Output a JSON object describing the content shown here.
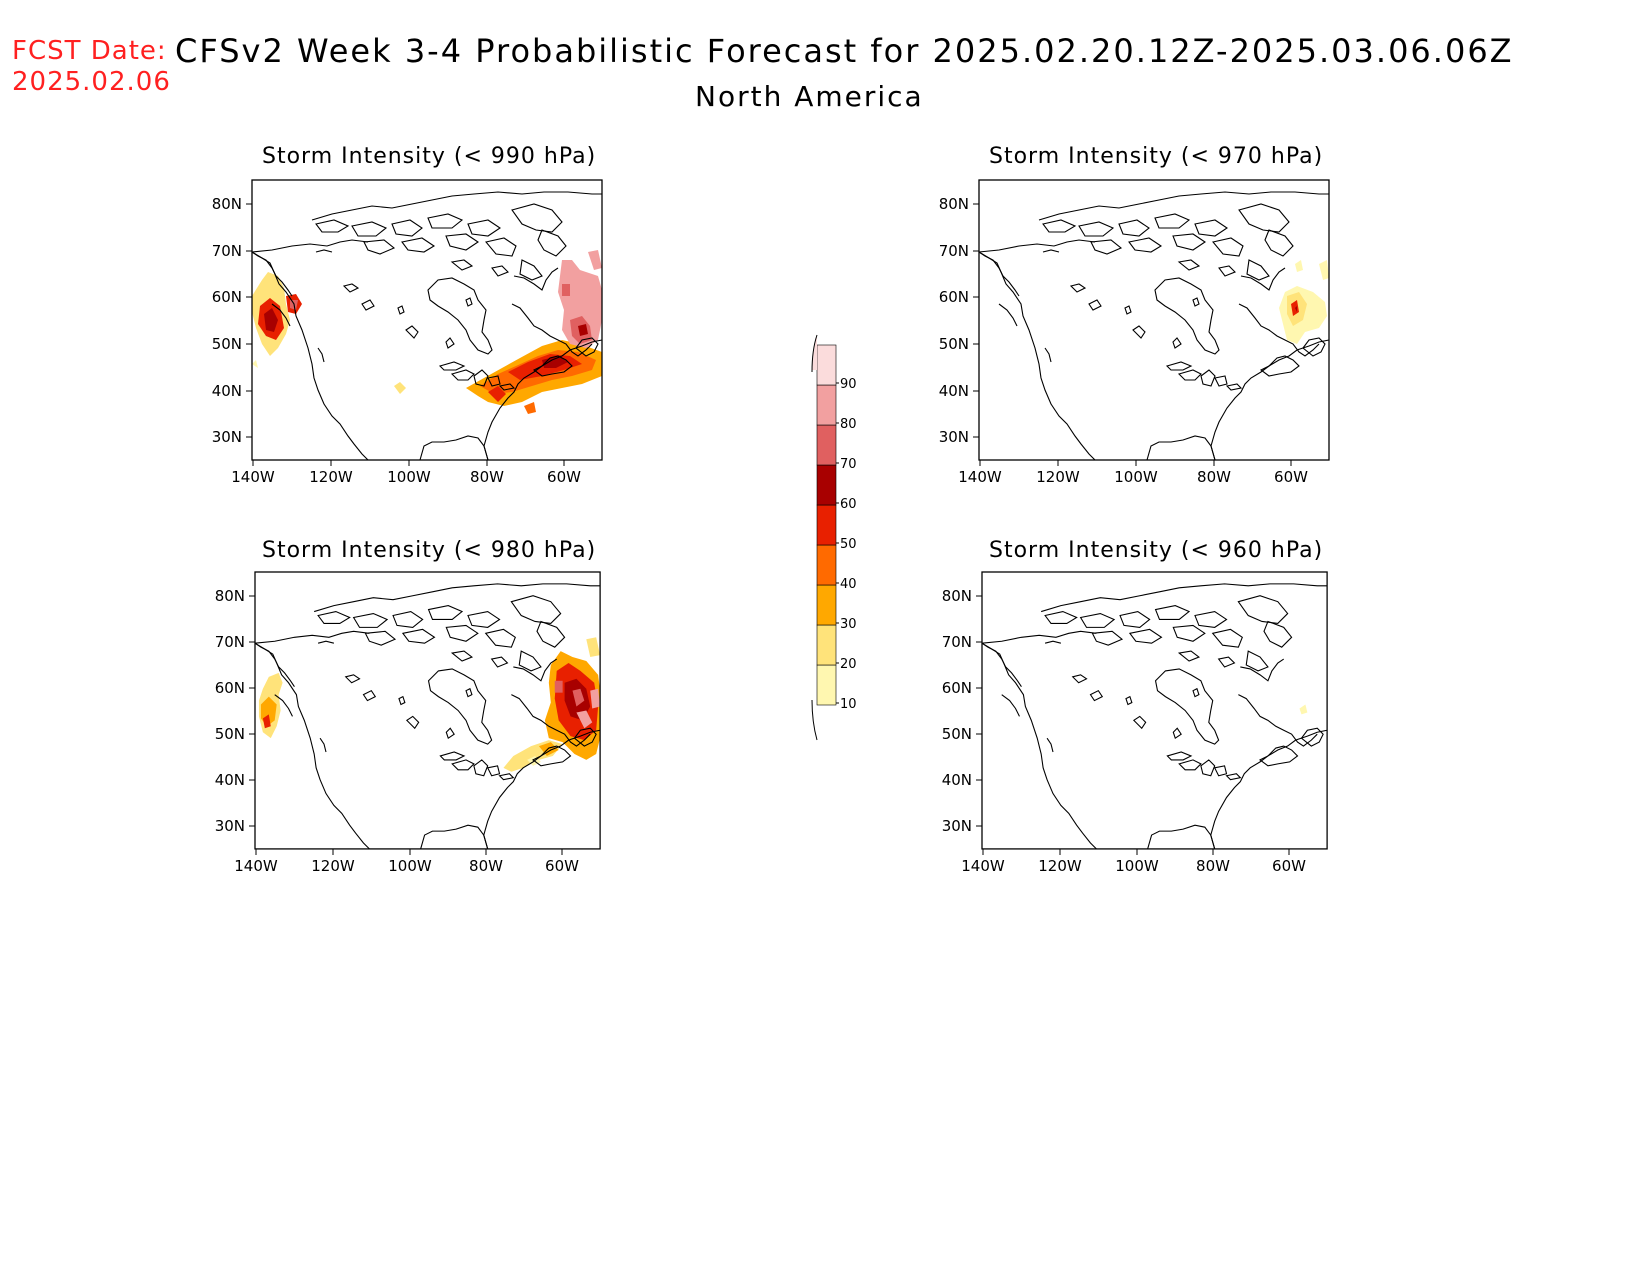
{
  "header": {
    "fcst_label": "FCST Date:",
    "fcst_date": "2025.02.06",
    "title": "CFSv2 Week 3-4 Probabilistic Forecast for 2025.02.20.12Z-2025.03.06.06Z",
    "region": "North America"
  },
  "axes": {
    "lat_labels": [
      "80N",
      "70N",
      "60N",
      "50N",
      "40N",
      "30N"
    ],
    "lon_labels": [
      "140W",
      "120W",
      "100W",
      "80W",
      "60W"
    ]
  },
  "panels": [
    {
      "title": "Storm Intensity (< 990 hPa)"
    },
    {
      "title": "Storm Intensity (< 970 hPa)"
    },
    {
      "title": "Storm Intensity (< 980 hPa)"
    },
    {
      "title": "Storm Intensity (< 960 hPa)"
    }
  ],
  "colorbar": {
    "labels": [
      "10",
      "20",
      "30",
      "40",
      "50",
      "60",
      "70",
      "80",
      "90"
    ],
    "colors": [
      "#fff7b0",
      "#ffe37a",
      "#ffa800",
      "#ff6a00",
      "#e82000",
      "#a80000",
      "#e06060",
      "#f2a0a0",
      "#fbdcdc"
    ]
  },
  "chart_data": [
    {
      "type": "heatmap",
      "title": "Storm Intensity (< 990 hPa)",
      "units": "%",
      "regions": [
        {
          "area": "Gulf of Alaska / Pacific NW coast",
          "max_prob": 70
        },
        {
          "area": "Labrador Sea / Greenland coast",
          "max_prob": 90
        },
        {
          "area": "Great Lakes to Newfoundland / NW Atlantic",
          "max_prob": 70
        },
        {
          "area": "Central US (isolated)",
          "max_prob": 20
        }
      ]
    },
    {
      "type": "heatmap",
      "title": "Storm Intensity (< 970 hPa)",
      "units": "%",
      "regions": [
        {
          "area": "Labrador / Hudson Strait",
          "max_prob": 70
        },
        {
          "area": "Labrador Sea",
          "max_prob": 20
        }
      ]
    },
    {
      "type": "heatmap",
      "title": "Storm Intensity (< 980 hPa)",
      "units": "%",
      "regions": [
        {
          "area": "Gulf of Alaska coast",
          "max_prob": 60
        },
        {
          "area": "Labrador / Labrador Sea",
          "max_prob": 80
        },
        {
          "area": "Nova Scotia / NW Atlantic",
          "max_prob": 30
        }
      ]
    },
    {
      "type": "heatmap",
      "title": "Storm Intensity (< 960 hPa)",
      "units": "%",
      "regions": [
        {
          "area": "Labrador coast (isolated)",
          "max_prob": 10
        }
      ]
    }
  ]
}
